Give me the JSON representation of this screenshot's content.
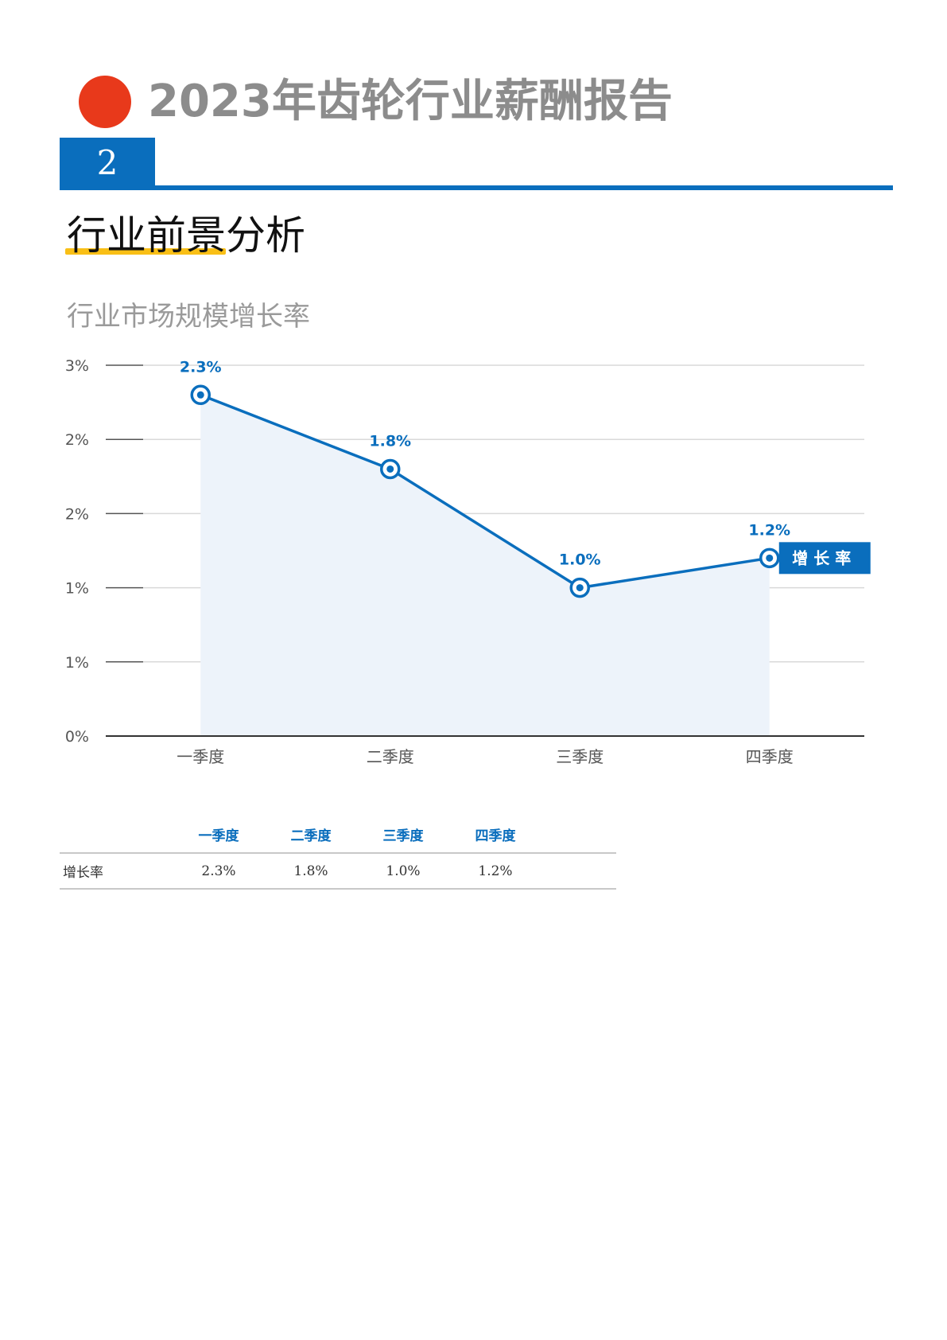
{
  "header": {
    "report_title": "2023年齿轮行业薪酬报告",
    "chapter_number": "2",
    "section_title": "行业前景分析"
  },
  "chart_data": {
    "type": "line",
    "title": "行业市场规模增长率",
    "categories": [
      "一季度",
      "二季度",
      "三季度",
      "四季度"
    ],
    "series": [
      {
        "name": "增长率",
        "values": [
          2.3,
          1.8,
          1.0,
          1.2
        ],
        "labels": [
          "2.3%",
          "1.8%",
          "1.0%",
          "1.2%"
        ]
      }
    ],
    "y_ticks": [
      0,
      0.5,
      1,
      1.5,
      2,
      2.5
    ],
    "y_tick_labels": [
      "0%",
      "1%",
      "1%",
      "2%",
      "2%",
      "3%"
    ],
    "ylim": [
      0,
      2.5
    ],
    "grid": true,
    "area_fill": true,
    "legend": "series name tag at end of line",
    "colors": {
      "line": "#0a6ebd",
      "area": "#edf3fa",
      "grid": "#d9d9d9",
      "axis": "#333333",
      "label": "#0a6ebd"
    }
  },
  "table": {
    "headers": [
      "",
      "一季度",
      "二季度",
      "三季度",
      "四季度"
    ],
    "rows": [
      {
        "label": "增长率",
        "values": [
          "2.3%",
          "1.8%",
          "1.0%",
          "1.2%"
        ]
      }
    ]
  },
  "colors": {
    "brand_red": "#e8391b",
    "brand_blue": "#0a6ebd",
    "accent_yellow": "#f9bf16",
    "title_gray": "#8c8c8c"
  }
}
